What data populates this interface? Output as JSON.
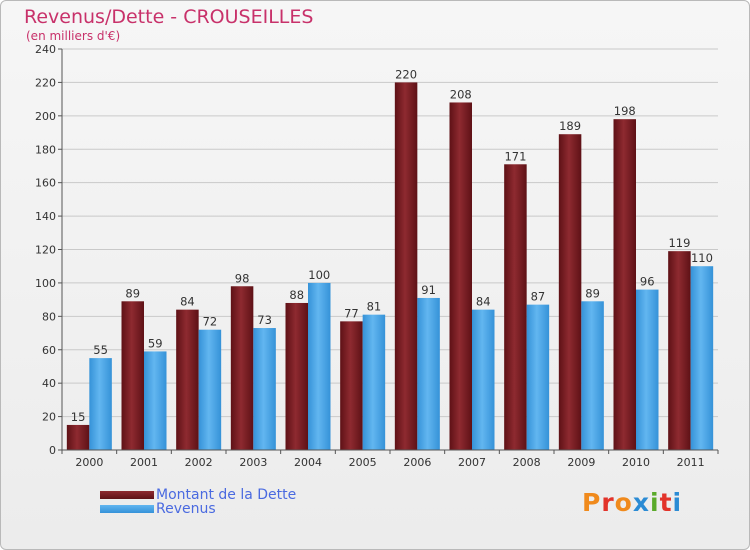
{
  "title": "Revenus/Dette - CROUSEILLES",
  "subtitle": "(en milliers d'€)",
  "logo": {
    "text": "Proxiti"
  },
  "colors": {
    "dette": "#7a1f24",
    "revenus": "#4ea6e6",
    "title": "#c8316a",
    "legend_text": "#4a6ae0"
  },
  "chart_data": {
    "type": "bar",
    "title": "Revenus/Dette - CROUSEILLES",
    "subtitle": "(en milliers d'€)",
    "categories": [
      "2000",
      "2001",
      "2002",
      "2003",
      "2004",
      "2005",
      "2006",
      "2007",
      "2008",
      "2009",
      "2010",
      "2011"
    ],
    "series": [
      {
        "name": "Montant de la Dette",
        "color": "#7a1f24",
        "values": [
          15,
          89,
          84,
          98,
          88,
          77,
          220,
          208,
          171,
          189,
          198,
          119
        ]
      },
      {
        "name": "Revenus",
        "color": "#4ea6e6",
        "values": [
          55,
          59,
          72,
          73,
          100,
          81,
          91,
          84,
          87,
          89,
          96,
          110
        ]
      }
    ],
    "ylim": [
      0,
      240
    ],
    "yticks": [
      0,
      20,
      40,
      60,
      80,
      100,
      120,
      140,
      160,
      180,
      200,
      220,
      240
    ],
    "grid": true,
    "legend": "bottom-left"
  }
}
